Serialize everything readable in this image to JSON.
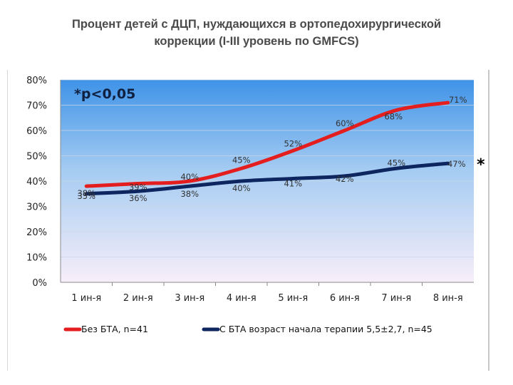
{
  "title_line1": "Процент детей с ДЦП, нуждающихся в ортопедохирургической",
  "title_line2": "коррекции (I-III уровень по GMFCS)",
  "annotation": "*p<0,05",
  "significance_marker": "*",
  "colors": {
    "series_red": "#e41e1e",
    "series_blue": "#0d2660",
    "annotation": "#102040",
    "plot_top": "#3f93e8",
    "plot_bottom": "#f7eef9"
  },
  "chart_data": {
    "type": "line",
    "categories": [
      "1 ин-я",
      "2 ин-я",
      "3 ин-я",
      "4 ин-я",
      "5 ин-я",
      "6 ин-я",
      "7 ин-я",
      "8 ин-я"
    ],
    "ylim": [
      0,
      80
    ],
    "yticks": [
      "0%",
      "10%",
      "20%",
      "30%",
      "40%",
      "50%",
      "60%",
      "70%",
      "80%"
    ],
    "grid": true,
    "legend_position": "bottom",
    "series": [
      {
        "name": "Без БТА, n=41",
        "values": [
          38,
          39,
          40,
          45,
          52,
          60,
          68,
          71
        ],
        "labels": [
          "38%",
          "39%",
          "40%",
          "45%",
          "52%",
          "60%",
          "68%",
          "71%"
        ],
        "color": "#e41e1e"
      },
      {
        "name": "С БТА возраст начала терапии 5,5±2,7, n=45",
        "values": [
          35,
          36,
          38,
          40,
          41,
          42,
          45,
          47
        ],
        "labels": [
          "35%",
          "36%",
          "38%",
          "40%",
          "41%",
          "42%",
          "45%",
          "47%"
        ],
        "color": "#0d2660"
      }
    ]
  }
}
